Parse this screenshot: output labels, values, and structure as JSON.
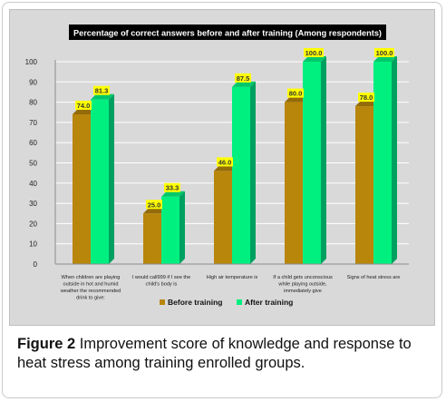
{
  "chart_data": {
    "type": "bar",
    "title": "Percentage of correct answers before and after training (Among respondents)",
    "categories": [
      [
        "When children are playing",
        "outside in hot and humid",
        "weather the recommended",
        "drink to give:"
      ],
      [
        "I would call999 if I see the",
        "child's body is"
      ],
      [
        "High air temperature is"
      ],
      [
        "If a child gets unconscious",
        "while playing outside,",
        "immediately give"
      ],
      [
        "Signs of heat stress are"
      ]
    ],
    "series": [
      {
        "name": "Before training",
        "values": [
          74.0,
          25.0,
          46.0,
          80.0,
          78.0
        ],
        "labels": [
          "74.0",
          "25.0",
          "46.0",
          "80.0",
          "78.0"
        ],
        "color": "#b8860b"
      },
      {
        "name": "After training",
        "values": [
          81.3,
          33.3,
          87.5,
          100.0,
          100.0
        ],
        "labels": [
          "81.3",
          "33.3",
          "87.5",
          "100.0",
          "100.0"
        ],
        "color": "#00f080"
      }
    ],
    "yticks": [
      "0",
      "10",
      "20",
      "30",
      "40",
      "50",
      "60",
      "70",
      "80",
      "90",
      "100"
    ],
    "ylim": [
      0,
      100
    ],
    "grid": true,
    "legend_position": "bottom",
    "colors": {
      "title_bg": "#000000",
      "label_bg": "#ffff00",
      "grid": "#ffffff",
      "plot_bg": "#d9d9d9"
    }
  },
  "caption": {
    "label": "Figure 2",
    "text": " Improvement score of knowledge and response to heat stress among training enrolled groups."
  }
}
